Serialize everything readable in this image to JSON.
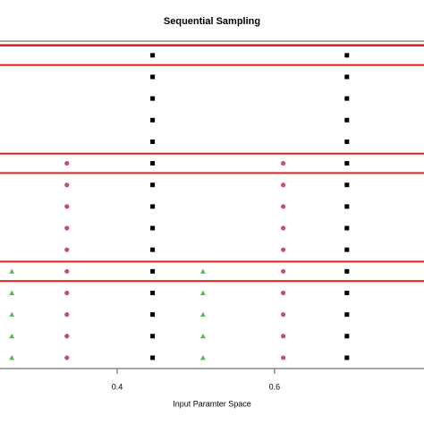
{
  "chart_data": {
    "type": "scatter",
    "title": "Sequential Sampling",
    "x_label": "Input Paramter Space",
    "xlim": [
      0.251,
      0.79
    ],
    "xticks": [
      0.4,
      0.6
    ],
    "ylim": [
      0.5,
      17.5
    ],
    "highlights": [
      5,
      10,
      15
    ],
    "highlight_color": "#e0221c",
    "series": [
      {
        "color": "#5cb85c",
        "marker": "triangle",
        "x": [
          0.266,
          0.266,
          0.266,
          0.266,
          0.266,
          0.509,
          0.509,
          0.509,
          0.509,
          0.509
        ],
        "y": [
          1,
          2,
          3,
          4,
          5,
          1,
          2,
          3,
          4,
          5
        ]
      },
      {
        "color": "#c2506f",
        "marker": "circle",
        "x": [
          0.336,
          0.336,
          0.336,
          0.336,
          0.336,
          0.336,
          0.336,
          0.336,
          0.336,
          0.336,
          0.611,
          0.611,
          0.611,
          0.611,
          0.611,
          0.611,
          0.611,
          0.611,
          0.611,
          0.611
        ],
        "y": [
          1,
          2,
          3,
          4,
          5,
          6,
          7,
          8,
          9,
          10,
          1,
          2,
          3,
          4,
          5,
          6,
          7,
          8,
          9,
          10
        ]
      },
      {
        "color": "#000000",
        "marker": "square",
        "x": [
          0.445,
          0.445,
          0.445,
          0.445,
          0.445,
          0.445,
          0.445,
          0.445,
          0.445,
          0.445,
          0.445,
          0.445,
          0.445,
          0.445,
          0.445,
          0.692,
          0.692,
          0.692,
          0.692,
          0.692,
          0.692,
          0.692,
          0.692,
          0.692,
          0.692,
          0.692,
          0.692,
          0.692,
          0.692,
          0.692
        ],
        "y": [
          1,
          2,
          3,
          4,
          5,
          6,
          7,
          8,
          9,
          10,
          11,
          12,
          13,
          14,
          15,
          1,
          2,
          3,
          4,
          5,
          6,
          7,
          8,
          9,
          10,
          11,
          12,
          13,
          14,
          15
        ]
      }
    ]
  }
}
